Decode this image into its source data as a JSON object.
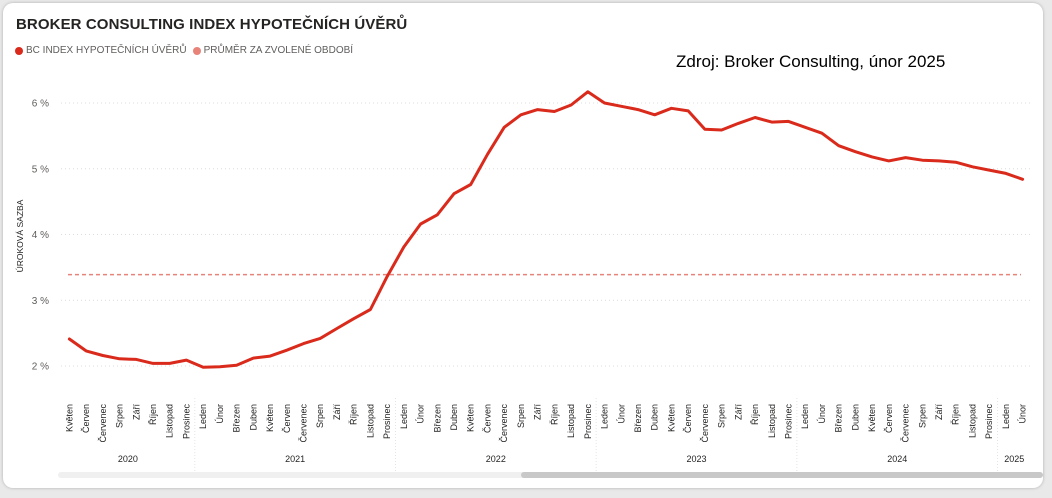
{
  "chart_data": {
    "type": "line",
    "title": "BROKER CONSULTING INDEX HYPOTEČNÍCH ÚVĚRŮ",
    "annotation": "Zdroj: Broker Consulting, únor 2025",
    "ylabel": "ÚROKOVÁ SAZBA",
    "yticks": [
      "2 %",
      "3 %",
      "4 %",
      "5 %",
      "6 %"
    ],
    "ylim": [
      1.8,
      6.3
    ],
    "legend_position": "top-left",
    "grid": true,
    "x_months": [
      "Květen",
      "Červen",
      "Červenec",
      "Srpen",
      "Září",
      "Říjen",
      "Listopad",
      "Prosinec",
      "Leden",
      "Únor",
      "Březen",
      "Duben",
      "Květen",
      "Červen",
      "Červenec",
      "Srpen",
      "Září",
      "Říjen",
      "Listopad",
      "Prosinec",
      "Leden",
      "Únor",
      "Březen",
      "Duben",
      "Květen",
      "Červen",
      "Červenec",
      "Srpen",
      "Září",
      "Říjen",
      "Listopad",
      "Prosinec",
      "Leden",
      "Únor",
      "Březen",
      "Duben",
      "Květen",
      "Červen",
      "Červenec",
      "Srpen",
      "Září",
      "Říjen",
      "Listopad",
      "Prosinec",
      "Leden",
      "Únor",
      "Březen",
      "Duben",
      "Květen",
      "Červen",
      "Červenec",
      "Srpen",
      "Září",
      "Říjen",
      "Listopad",
      "Prosinec",
      "Leden",
      "Únor"
    ],
    "years": [
      {
        "label": "2020",
        "months": 8
      },
      {
        "label": "2021",
        "months": 12
      },
      {
        "label": "2022",
        "months": 12
      },
      {
        "label": "2023",
        "months": 12
      },
      {
        "label": "2024",
        "months": 12
      },
      {
        "label": "2025",
        "months": 2
      }
    ],
    "series": [
      {
        "name": "BC INDEX HYPOTEČNÍCH ÚVĚRŮ",
        "color": "#d92a1c",
        "values": [
          2.41,
          2.23,
          2.16,
          2.11,
          2.1,
          2.04,
          2.04,
          2.09,
          1.98,
          1.99,
          2.01,
          2.12,
          2.15,
          2.24,
          2.34,
          2.42,
          2.57,
          2.72,
          2.86,
          3.36,
          3.81,
          4.16,
          4.3,
          4.62,
          4.76,
          5.22,
          5.63,
          5.82,
          5.9,
          5.87,
          5.97,
          6.17,
          6.0,
          5.95,
          5.9,
          5.82,
          5.92,
          5.88,
          5.6,
          5.59,
          5.69,
          5.78,
          5.71,
          5.72,
          5.63,
          5.54,
          5.35,
          5.26,
          5.18,
          5.12,
          5.17,
          5.13,
          5.12,
          5.1,
          5.03,
          4.98,
          4.93,
          4.84
        ]
      },
      {
        "name": "PRŮMĚR ZA ZVOLENÉ OBDOBÍ",
        "color": "#e8837a",
        "value": 3.39
      }
    ]
  }
}
